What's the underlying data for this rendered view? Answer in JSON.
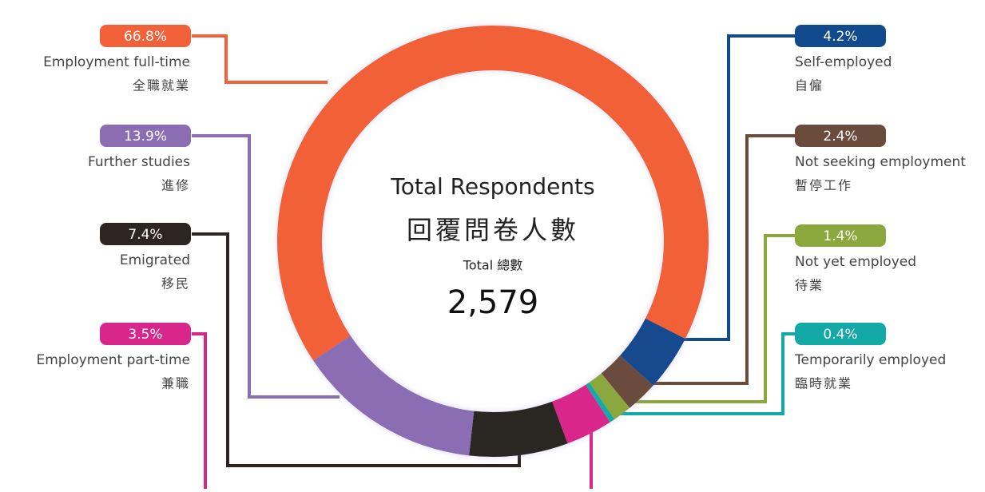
{
  "chart_data": {
    "type": "donut",
    "center_title": "Total Respondents",
    "center_title_zh": "回覆問卷人數",
    "total_label": "Total 總數",
    "total": {
      "value": 2579,
      "label": "2,579"
    },
    "series": [
      {
        "name": "Employment full-time",
        "name_zh": "全職就業",
        "value": 66.8,
        "value_label": "66.8%",
        "color": "#f26139"
      },
      {
        "name": "Self-employed",
        "name_zh": "自僱",
        "value": 4.2,
        "value_label": "4.2%",
        "color": "#124a8e"
      },
      {
        "name": "Not seeking employment",
        "name_zh": "暫停工作",
        "value": 2.4,
        "value_label": "2.4%",
        "color": "#6b4b3c"
      },
      {
        "name": "Not yet employed",
        "name_zh": "待業",
        "value": 1.4,
        "value_label": "1.4%",
        "color": "#8aa83c"
      },
      {
        "name": "Temporarily employed",
        "name_zh": "臨時就業",
        "value": 0.4,
        "value_label": "0.4%",
        "color": "#12a9a7"
      },
      {
        "name": "Employment part-time",
        "name_zh": "兼職",
        "value": 3.5,
        "value_label": "3.5%",
        "color": "#d9268a"
      },
      {
        "name": "Emigrated",
        "name_zh": "移民",
        "value": 7.4,
        "value_label": "7.4%",
        "color": "#2c2522"
      },
      {
        "name": "Further studies",
        "name_zh": "進修",
        "value": 13.9,
        "value_label": "13.9%",
        "color": "#8a6db3"
      }
    ]
  }
}
